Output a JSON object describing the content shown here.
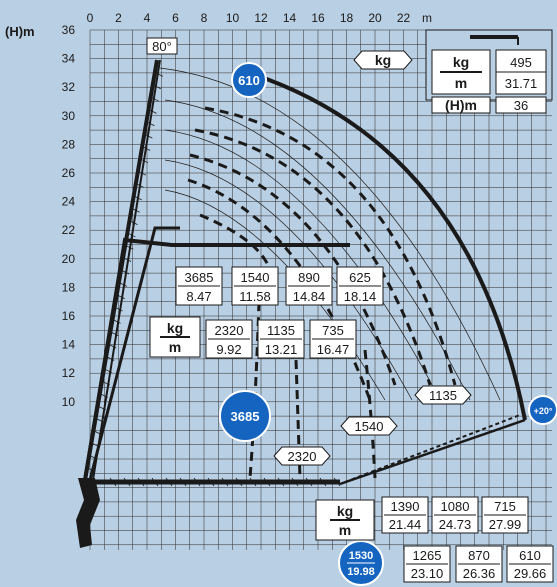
{
  "colors": {
    "background": "#b9cfe3",
    "accent": "#1565c0",
    "grid": "#2b2b2b",
    "box": "#ffffff"
  },
  "chart_data": {
    "type": "load-chart",
    "ylabel": "(H)m",
    "xlabel_unit": "m",
    "x_ticks": [
      "0",
      "2",
      "4",
      "6",
      "8",
      "10",
      "12",
      "14",
      "16",
      "18",
      "20",
      "22"
    ],
    "y_ticks": [
      "36",
      "34",
      "32",
      "30",
      "28",
      "26",
      "24",
      "22",
      "20",
      "18",
      "16",
      "14",
      "12",
      "10"
    ],
    "boom_angle_label": "80°",
    "tip_angle_label": "+20°",
    "legend": {
      "kg_label": "kg",
      "m_label": "m",
      "h_label": "(H)m",
      "kg_value": "495",
      "m_value": "31.71",
      "h_value": "36"
    },
    "badges": [
      "610",
      "3685",
      "1530",
      "19.98"
    ],
    "upper_pairs": [
      {
        "kg": "3685",
        "m": "8.47"
      },
      {
        "kg": "1540",
        "m": "11.58"
      },
      {
        "kg": "890",
        "m": "14.84"
      },
      {
        "kg": "625",
        "m": "18.14"
      }
    ],
    "middle_pairs": [
      {
        "kg": "2320",
        "m": "9.92"
      },
      {
        "kg": "1135",
        "m": "13.21"
      },
      {
        "kg": "735",
        "m": "16.47"
      }
    ],
    "lower_top_pairs": [
      {
        "kg": "1390",
        "m": "21.44"
      },
      {
        "kg": "1080",
        "m": "24.73"
      },
      {
        "kg": "715",
        "m": "27.99"
      }
    ],
    "lower_bottom_pairs": [
      {
        "kg": "1265",
        "m": "23.10"
      },
      {
        "kg": "870",
        "m": "26.36"
      },
      {
        "kg": "610",
        "m": "29.66"
      }
    ],
    "capacity_tags": [
      "1135",
      "1540",
      "2320"
    ],
    "kg_m_label": {
      "kg": "kg",
      "m": "m"
    }
  }
}
